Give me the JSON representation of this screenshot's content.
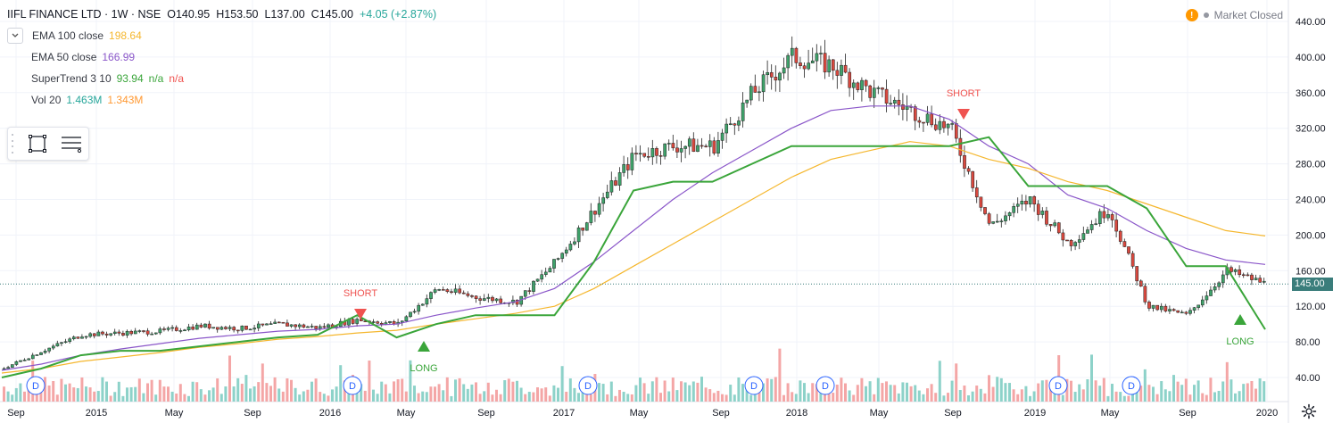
{
  "header": {
    "symbol": "IIFL FINANCE LTD · 1W · NSE",
    "open": "O140.95",
    "high": "H153.50",
    "low": "L137.00",
    "close": "C145.00",
    "change": "+4.05 (+2.87%)"
  },
  "indicators": [
    {
      "name": "EMA 100 close",
      "value": "198.64",
      "color": "#f5b72e"
    },
    {
      "name": "EMA 50 close",
      "value": "166.99",
      "color": "#8a56c9"
    },
    {
      "name": "SuperTrend 3 10",
      "value": "93.94",
      "v2": "n/a",
      "v3": "n/a",
      "c1": "#3aa53a",
      "c2": "#3aa53a",
      "c3": "#ef5350"
    },
    {
      "name": "Vol 20",
      "value": "1.463M",
      "value2": "1.343M",
      "c1": "#26a69a",
      "c2": "#ff9933"
    }
  ],
  "status": {
    "market": "Market Closed"
  },
  "price_axis": {
    "ticks": [
      "440.00",
      "400.00",
      "360.00",
      "320.00",
      "280.00",
      "240.00",
      "200.00",
      "160.00",
      "120.00",
      "80.00",
      "40.00"
    ],
    "last_price": "145.00"
  },
  "time_axis": {
    "ticks": [
      "Sep",
      "2015",
      "May",
      "Sep",
      "2016",
      "May",
      "Sep",
      "2017",
      "May",
      "Sep",
      "2018",
      "May",
      "Sep",
      "2019",
      "May",
      "Sep",
      "2020"
    ]
  },
  "signals": [
    {
      "label": "SHORT",
      "color": "#ef5350"
    },
    {
      "label": "LONG",
      "color": "#3aa53a"
    },
    {
      "label": "SHORT",
      "color": "#ef5350"
    },
    {
      "label": "LONG",
      "color": "#3aa53a"
    }
  ],
  "dividend_marker": "D",
  "icons": {
    "collapse": "chevron-down-icon",
    "rectangle": "rectangle-tool-icon",
    "lines": "lines-tool-icon",
    "warning": "warning-icon",
    "settings": "gear-icon"
  },
  "chart_data": {
    "type": "line",
    "x": [
      "2014-09",
      "2014-11",
      "2015-01",
      "2015-03",
      "2015-05",
      "2015-07",
      "2015-09",
      "2015-11",
      "2016-01",
      "2016-03",
      "2016-05",
      "2016-07",
      "2016-09",
      "2016-11",
      "2017-01",
      "2017-03",
      "2017-05",
      "2017-07",
      "2017-09",
      "2017-11",
      "2018-01",
      "2018-03",
      "2018-05",
      "2018-07",
      "2018-09",
      "2018-11",
      "2019-01",
      "2019-03",
      "2019-05",
      "2019-07",
      "2019-09",
      "2019-11",
      "2019-12"
    ],
    "series": [
      {
        "name": "Close",
        "values": [
          50,
          70,
          88,
          90,
          92,
          98,
          95,
          100,
          96,
          105,
          100,
          140,
          130,
          125,
          170,
          230,
          290,
          300,
          300,
          360,
          400,
          390,
          360,
          340,
          320,
          210,
          240,
          190,
          230,
          120,
          110,
          160,
          145
        ]
      },
      {
        "name": "EMA 50 close",
        "values": [
          48,
          55,
          65,
          72,
          78,
          84,
          88,
          92,
          94,
          98,
          100,
          110,
          118,
          125,
          140,
          170,
          205,
          240,
          270,
          295,
          320,
          340,
          345,
          345,
          330,
          300,
          280,
          245,
          230,
          205,
          185,
          172,
          167
        ]
      },
      {
        "name": "EMA 100 close",
        "values": [
          45,
          50,
          58,
          63,
          68,
          74,
          78,
          83,
          86,
          90,
          93,
          100,
          106,
          112,
          120,
          140,
          165,
          190,
          215,
          240,
          265,
          285,
          295,
          305,
          300,
          285,
          275,
          260,
          250,
          235,
          220,
          205,
          199
        ]
      },
      {
        "name": "SuperTrend 3 10",
        "values": [
          40,
          50,
          65,
          70,
          70,
          75,
          80,
          85,
          88,
          110,
          85,
          100,
          110,
          110,
          110,
          170,
          250,
          260,
          260,
          280,
          300,
          300,
          300,
          300,
          300,
          310,
          255,
          255,
          255,
          230,
          165,
          165,
          94
        ]
      }
    ],
    "ylim": [
      20,
      450
    ],
    "volume_series": [
      {
        "name": "Vol 20",
        "values": [
          1.463,
          1.343
        ]
      }
    ],
    "annotations": [
      "SHORT",
      "LONG",
      "SHORT",
      "LONG"
    ],
    "grid": true,
    "legend_position": "top-left"
  }
}
